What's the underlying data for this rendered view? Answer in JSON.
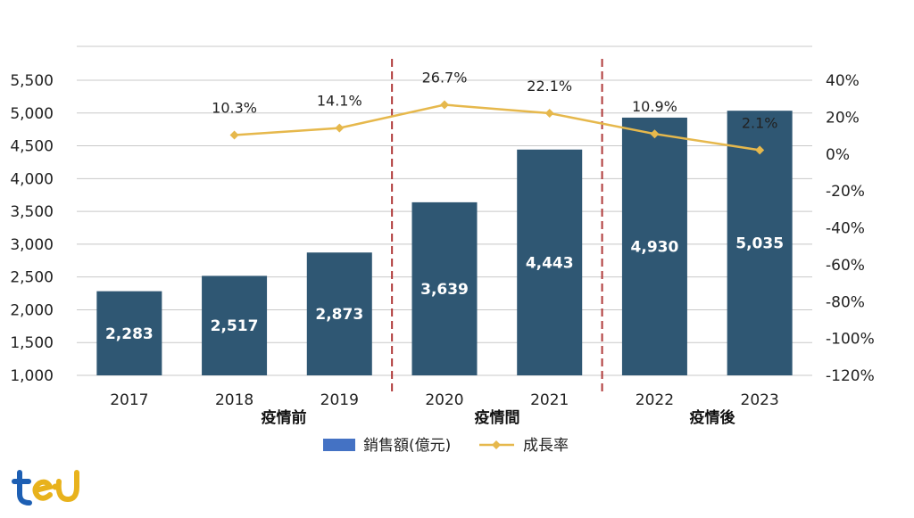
{
  "chart_data": {
    "type": "bar",
    "categories": [
      "2017",
      "2018",
      "2019",
      "2020",
      "2021",
      "2022",
      "2023"
    ],
    "series": [
      {
        "name": "銷售額(億元)",
        "type": "bar",
        "axis": "left",
        "color": "#2f5773",
        "values": [
          2283,
          2517,
          2873,
          3639,
          4443,
          4930,
          5035
        ],
        "labels": [
          "2,283",
          "2,517",
          "2,873",
          "3,639",
          "4,443",
          "4,930",
          "5,035"
        ]
      },
      {
        "name": "成長率",
        "type": "line",
        "axis": "right",
        "color": "#e6b84c",
        "values": [
          null,
          10.3,
          14.1,
          26.7,
          22.1,
          10.9,
          2.1
        ],
        "labels": [
          "",
          "10.3%",
          "14.1%",
          "26.7%",
          "22.1%",
          "10.9%",
          "2.1%"
        ]
      }
    ],
    "y_left": {
      "ylim": [
        1000,
        5500
      ],
      "ticks": [
        1000,
        1500,
        2000,
        2500,
        3000,
        3500,
        4000,
        4500,
        5000,
        5500
      ],
      "tick_labels": [
        "1,000",
        "1,500",
        "2,000",
        "2,500",
        "3,000",
        "3,500",
        "4,000",
        "4,500",
        "5,000",
        "5,500"
      ]
    },
    "y_right": {
      "ylim": [
        -120,
        40
      ],
      "ticks": [
        -120,
        -100,
        -80,
        -60,
        -40,
        -20,
        0,
        20,
        40
      ],
      "tick_labels": [
        "-120%",
        "-100%",
        "-80%",
        "-60%",
        "-40%",
        "-20%",
        "0%",
        "20%",
        "40%"
      ]
    },
    "groups": [
      {
        "label": "疫情前",
        "categories": [
          "2017",
          "2018",
          "2019"
        ]
      },
      {
        "label": "疫情間",
        "categories": [
          "2020",
          "2021"
        ]
      },
      {
        "label": "疫情後",
        "categories": [
          "2022",
          "2023"
        ]
      }
    ],
    "dividers_after": [
      "2019",
      "2021"
    ],
    "divider_color": "#b03a3a",
    "grid": true,
    "legend": "bottom-center",
    "title": "",
    "xlabel": "",
    "ylabel": ""
  },
  "logo": {
    "name": "tejwin-logo-icon",
    "text": "tej",
    "colors": [
      "#1d5fb3",
      "#e8b21c"
    ]
  }
}
